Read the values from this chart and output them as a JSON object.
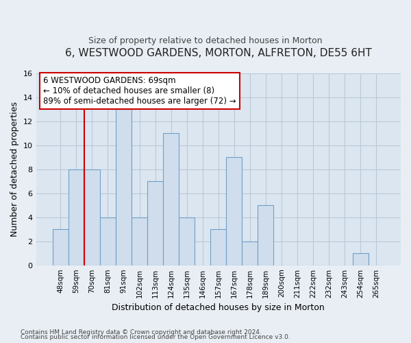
{
  "title": "6, WESTWOOD GARDENS, MORTON, ALFRETON, DE55 6HT",
  "subtitle": "Size of property relative to detached houses in Morton",
  "xlabel": "Distribution of detached houses by size in Morton",
  "ylabel": "Number of detached properties",
  "bar_color": "#cfdded",
  "bar_edgecolor": "#6fa0c8",
  "vline_color": "#cc0000",
  "categories": [
    "48sqm",
    "59sqm",
    "70sqm",
    "81sqm",
    "91sqm",
    "102sqm",
    "113sqm",
    "124sqm",
    "135sqm",
    "146sqm",
    "157sqm",
    "167sqm",
    "178sqm",
    "189sqm",
    "200sqm",
    "211sqm",
    "222sqm",
    "232sqm",
    "243sqm",
    "254sqm",
    "265sqm"
  ],
  "values": [
    3,
    8,
    8,
    4,
    13,
    4,
    7,
    11,
    4,
    0,
    3,
    9,
    2,
    5,
    0,
    0,
    0,
    0,
    0,
    1,
    0
  ],
  "ylim": [
    0,
    16
  ],
  "yticks": [
    0,
    2,
    4,
    6,
    8,
    10,
    12,
    14,
    16
  ],
  "annotation_text": "6 WESTWOOD GARDENS: 69sqm\n← 10% of detached houses are smaller (8)\n89% of semi-detached houses are larger (72) →",
  "annotation_box_edgecolor": "#cc0000",
  "annotation_box_facecolor": "#ffffff",
  "footnote1": "Contains HM Land Registry data © Crown copyright and database right 2024.",
  "footnote2": "Contains public sector information licensed under the Open Government Licence v3.0.",
  "background_color": "#e8eef4",
  "plot_bg_color": "#dce6f0",
  "grid_color": "#b8c8d8"
}
